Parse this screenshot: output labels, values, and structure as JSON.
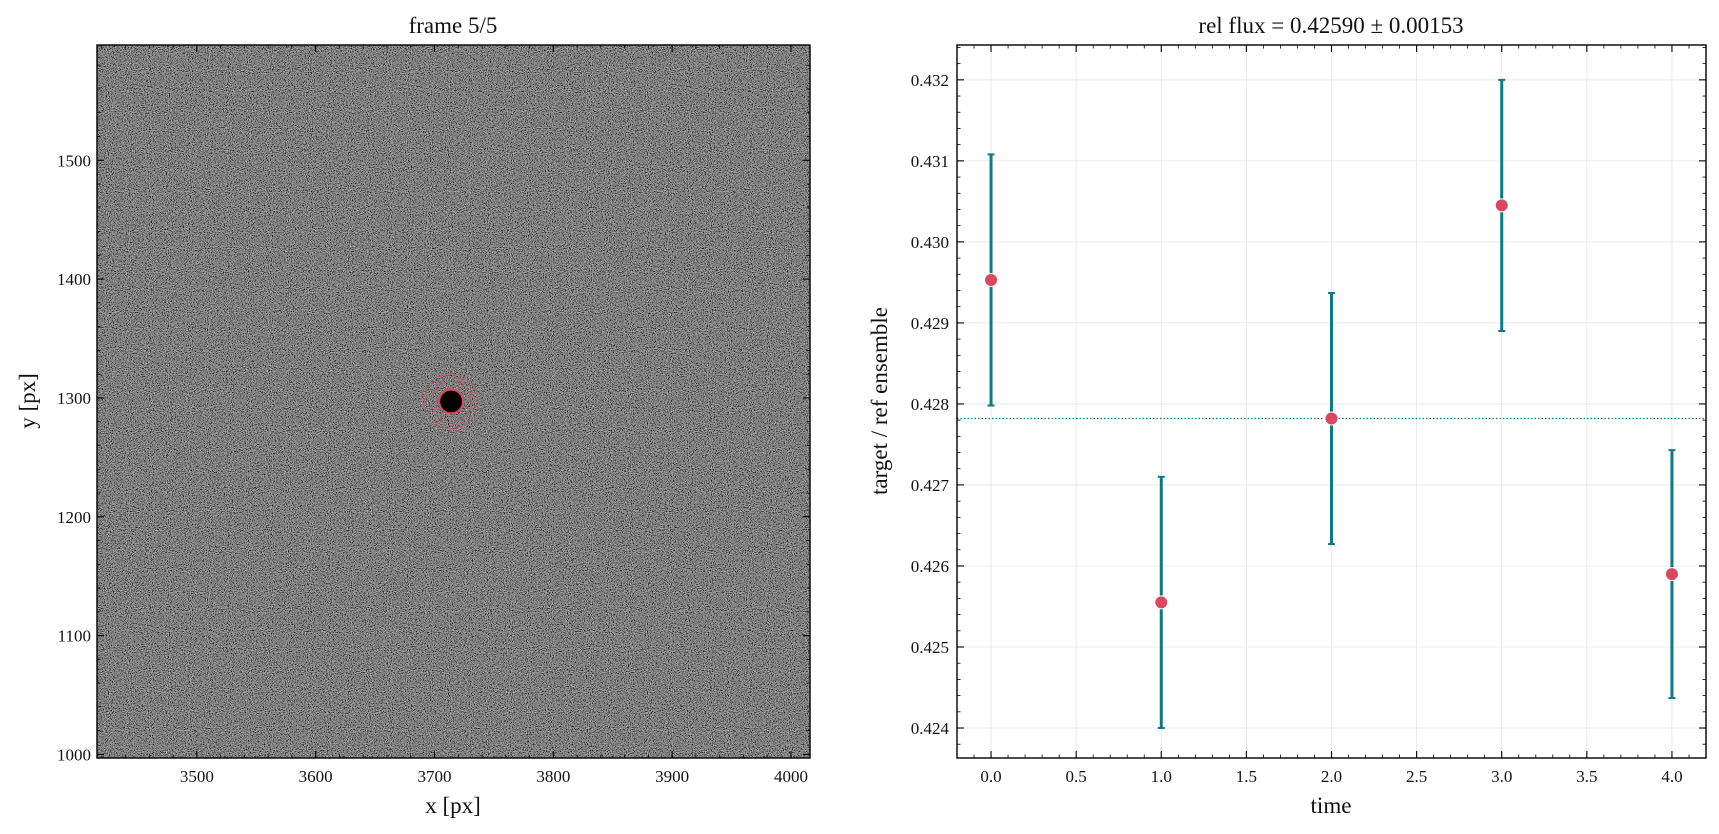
{
  "chart_data": [
    {
      "type": "image",
      "title": "frame 5/5",
      "xlabel": "x [px]",
      "ylabel": "y [px]",
      "xlim": [
        3416,
        4016
      ],
      "ylim": [
        997,
        1597
      ],
      "xticks": [
        3500,
        3600,
        3700,
        3800,
        3900,
        4000
      ],
      "yticks": [
        1000,
        1100,
        1200,
        1300,
        1400,
        1500
      ],
      "aperture": {
        "x": 3714,
        "y": 1297
      },
      "colors": {
        "aperture": "#d9485f",
        "background": "#3a3a3a"
      }
    },
    {
      "type": "scatter",
      "title": "rel flux = 0.42590 ± 0.00153",
      "xlabel": "time",
      "ylabel": "target / ref ensemble",
      "xlim": [
        -0.2,
        4.2
      ],
      "ylim": [
        0.42363,
        0.43243
      ],
      "xticks": [
        0.0,
        0.5,
        1.0,
        1.5,
        2.0,
        2.5,
        3.0,
        3.5,
        4.0
      ],
      "yticks": [
        0.424,
        0.425,
        0.426,
        0.427,
        0.428,
        0.429,
        0.43,
        0.431,
        0.432
      ],
      "grid": true,
      "reference_line": 0.42782,
      "points": [
        {
          "x": 0,
          "y": 0.42953,
          "err": 0.00155
        },
        {
          "x": 1,
          "y": 0.42555,
          "err": 0.00155
        },
        {
          "x": 2,
          "y": 0.42782,
          "err": 0.00155
        },
        {
          "x": 3,
          "y": 0.43045,
          "err": 0.00155
        },
        {
          "x": 4,
          "y": 0.4259,
          "err": 0.00153
        }
      ],
      "colors": {
        "marker": "#d9485f",
        "errorbar": "#0e7a86",
        "refline": "#0e7a86"
      }
    }
  ]
}
